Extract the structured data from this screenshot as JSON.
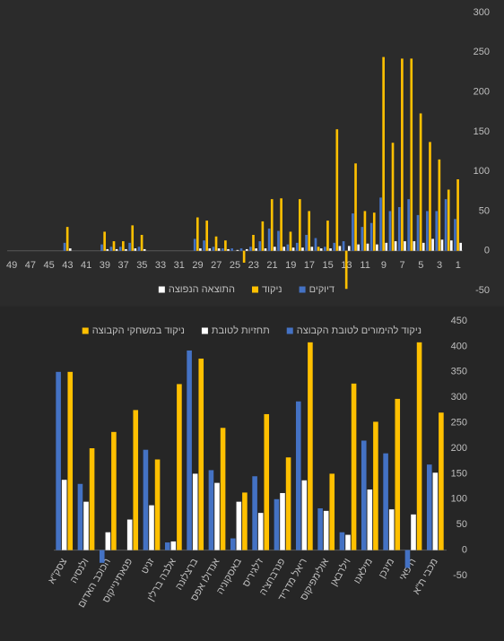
{
  "chart_data": [
    {
      "type": "bar",
      "reverse_x": true,
      "grid": false,
      "categories": [
        1,
        null,
        3,
        null,
        5,
        null,
        7,
        null,
        9,
        null,
        11,
        null,
        13,
        null,
        15,
        null,
        17,
        null,
        19,
        null,
        21,
        null,
        23,
        null,
        25,
        null,
        27,
        null,
        29,
        null,
        31,
        null,
        33,
        null,
        35,
        null,
        37,
        null,
        39,
        null,
        41,
        null,
        43,
        null,
        45,
        null,
        47,
        null,
        49
      ],
      "series": [
        {
          "name": "דיוקים",
          "color": "#4472c4",
          "values": [
            40,
            65,
            50,
            50,
            45,
            65,
            55,
            50,
            67,
            35,
            30,
            47,
            12,
            10,
            5,
            16,
            20,
            10,
            8,
            25,
            28,
            12,
            5,
            3,
            3,
            3,
            5,
            13,
            15,
            0,
            0,
            0,
            0,
            0,
            5,
            10,
            5,
            5,
            8,
            0,
            0,
            0,
            10,
            0,
            0,
            0,
            0,
            0,
            0
          ]
        },
        {
          "name": "ניקוד",
          "color": "#ffc000",
          "values": [
            90,
            77,
            115,
            137,
            173,
            242,
            242,
            136,
            244,
            48,
            50,
            110,
            -48,
            153,
            38,
            5,
            50,
            65,
            24,
            66,
            65,
            37,
            20,
            -15,
            0,
            13,
            18,
            38,
            42,
            0,
            0,
            0,
            0,
            0,
            20,
            32,
            12,
            12,
            24,
            0,
            0,
            0,
            30,
            0,
            0,
            0,
            0,
            0,
            0
          ]
        },
        {
          "name": "התוצאה הנפוצה",
          "color": "#ffffff",
          "values": [
            10,
            13,
            14,
            15,
            10,
            12,
            12,
            12,
            10,
            8,
            9,
            8,
            6,
            6,
            3,
            3,
            5,
            4,
            4,
            5,
            5,
            3,
            3,
            2,
            1,
            2,
            3,
            3,
            3,
            0,
            0,
            0,
            0,
            0,
            2,
            3,
            2,
            2,
            2,
            0,
            0,
            0,
            3,
            0,
            0,
            0,
            0,
            0,
            0
          ]
        }
      ],
      "ylim": [
        -50,
        300
      ],
      "yticks": [
        -50,
        0,
        50,
        100,
        150,
        200,
        250,
        300
      ]
    },
    {
      "type": "bar",
      "reverse_x": true,
      "grid": false,
      "categories": [
        "מכבי ת\"א",
        "חיפאי",
        "מינכן",
        "מילאנו",
        "וילרבאן",
        "אולימפיקוס",
        "ריאל מדריד",
        "פנרבחצ'ה",
        "ז'לגיריס",
        "באסקוניה",
        "אנדולו אפס",
        "ברצלונה",
        "אלבה ברלין",
        "זניט",
        "פנאתינייקוס",
        "הכוכב האדום",
        "ולנסיה",
        "צסק\"א"
      ],
      "series": [
        {
          "name": "ניקוד להימורים לטובת הקבוצה",
          "color": "#4472c4",
          "values": [
            168,
            -35,
            190,
            215,
            35,
            82,
            292,
            100,
            145,
            23,
            157,
            392,
            15,
            197,
            0,
            -25,
            130,
            350
          ]
        },
        {
          "name": "תחזיות לטובת",
          "color": "#ffffff",
          "values": [
            152,
            70,
            80,
            119,
            30,
            77,
            137,
            112,
            73,
            95,
            132,
            150,
            17,
            88,
            60,
            35,
            95,
            138
          ]
        },
        {
          "name": "ניקוד במשחקי הקבוצה",
          "color": "#ffc000",
          "values": [
            270,
            408,
            297,
            252,
            327,
            150,
            408,
            182,
            267,
            113,
            240,
            376,
            326,
            178,
            275,
            232,
            200,
            350
          ]
        }
      ],
      "ylim": [
        -50,
        450
      ],
      "yticks": [
        -50,
        0,
        50,
        100,
        150,
        200,
        250,
        300,
        350,
        400,
        450
      ]
    }
  ]
}
